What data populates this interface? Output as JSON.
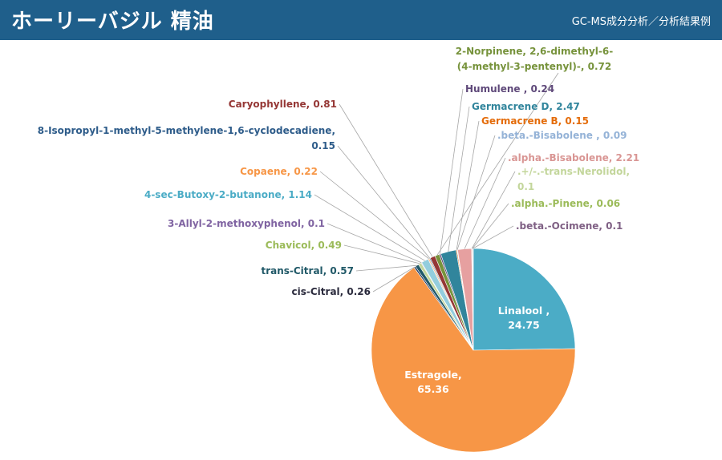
{
  "header": {
    "title": "ホーリーバジル 精油",
    "subtitle": "GC-MS成分分析／分析結果例"
  },
  "colors": {
    "header_bg": "#1f5f8b",
    "leader_line": "#a6a6a6"
  },
  "chart_data": {
    "type": "pie",
    "title": "",
    "start_angle_deg": 0,
    "direction": "clockwise",
    "slices": [
      {
        "name": "Linalool",
        "value": 24.75,
        "color": "#4bacc6",
        "label_color": "#ffffff",
        "label_lines": [
          "Linalool ,",
          "24.75"
        ],
        "inside": true
      },
      {
        "name": "Estragole",
        "value": 65.36,
        "color": "#f79646",
        "label_color": "#ffffff",
        "label_lines": [
          "Estragole,",
          "65.36"
        ],
        "inside": true
      },
      {
        "name": "cis-Citral",
        "value": 0.26,
        "color": "#1f3864",
        "label_color": "#2b2b3d",
        "label_lines": [
          "cis-Citral, 0.26"
        ]
      },
      {
        "name": "trans-Citral",
        "value": 0.57,
        "color": "#215968",
        "label_color": "#215968",
        "label_lines": [
          "trans-Citral, 0.57"
        ]
      },
      {
        "name": "Chavicol",
        "value": 0.49,
        "color": "#c3d69b",
        "label_color": "#9bbb59",
        "label_lines": [
          "Chavicol, 0.49"
        ]
      },
      {
        "name": "3-Allyl-2-methoxyphenol",
        "value": 0.1,
        "color": "#8064a2",
        "label_color": "#8064a2",
        "label_lines": [
          "3-Allyl-2-methoxyphenol, 0.1"
        ]
      },
      {
        "name": "4-sec-Butoxy-2-butanone",
        "value": 1.14,
        "color": "#93cddd",
        "label_color": "#4bacc6",
        "label_lines": [
          "4-sec-Butoxy-2-butanone, 1.14"
        ]
      },
      {
        "name": "Copaene",
        "value": 0.22,
        "color": "#fac090",
        "label_color": "#f79646",
        "label_lines": [
          "Copaene, 0.22"
        ]
      },
      {
        "name": "8-Isopropyl-1-methyl-5-methylene-1,6-cyclodecadiene",
        "value": 0.15,
        "color": "#2e5c8a",
        "label_color": "#2e5c8a",
        "label_lines": [
          "8-Isopropyl-1-methyl-5-methylene-1,6-cyclodecadiene,",
          "0.15"
        ]
      },
      {
        "name": "Caryophyllene",
        "value": 0.81,
        "color": "#953735",
        "label_color": "#953735",
        "label_lines": [
          "Caryophyllene, 0.81"
        ]
      },
      {
        "name": "2-Norpinene, 2,6-dimethyl-6-(4-methyl-3-pentenyl)-",
        "value": 0.72,
        "color": "#77933c",
        "label_color": "#77933c",
        "label_lines": [
          "2-Norpinene, 2,6-dimethyl-6-",
          "(4-methyl-3-pentenyl)-, 0.72"
        ]
      },
      {
        "name": "Humulene",
        "value": 0.24,
        "color": "#5f497a",
        "label_color": "#5f497a",
        "label_lines": [
          "Humulene , 0.24"
        ]
      },
      {
        "name": "Germacrene D",
        "value": 2.47,
        "color": "#31859c",
        "label_color": "#31859c",
        "label_lines": [
          "Germacrene D, 2.47"
        ]
      },
      {
        "name": "Germacrene B",
        "value": 0.15,
        "color": "#e46c0a",
        "label_color": "#e46c0a",
        "label_lines": [
          "Germacrene B, 0.15"
        ]
      },
      {
        "name": ".beta.-Bisabolene",
        "value": 0.09,
        "color": "#95b3d7",
        "label_color": "#95b3d7",
        "label_lines": [
          ".beta.-Bisabolene , 0.09"
        ]
      },
      {
        "name": ".alpha.-Bisabolene",
        "value": 2.21,
        "color": "#e6a0a0",
        "label_color": "#d99694",
        "label_lines": [
          ".alpha.-Bisabolene, 2.21"
        ]
      },
      {
        "name": ".+/-.-trans-Nerolidol",
        "value": 0.1,
        "color": "#d7e4bd",
        "label_color": "#c3d69b",
        "label_lines": [
          ".+/-.-trans-Nerolidol,",
          "0.1"
        ]
      },
      {
        "name": ".alpha.-Pinene",
        "value": 0.06,
        "color": "#b3a2c7",
        "label_color": "#9bbb59",
        "label_lines": [
          ".alpha.-Pinene, 0.06"
        ]
      },
      {
        "name": ".beta.-Ocimene",
        "value": 0.1,
        "color": "#7f6084",
        "label_color": "#7f6084",
        "label_lines": [
          ".beta.-Ocimene, 0.1"
        ]
      }
    ]
  }
}
